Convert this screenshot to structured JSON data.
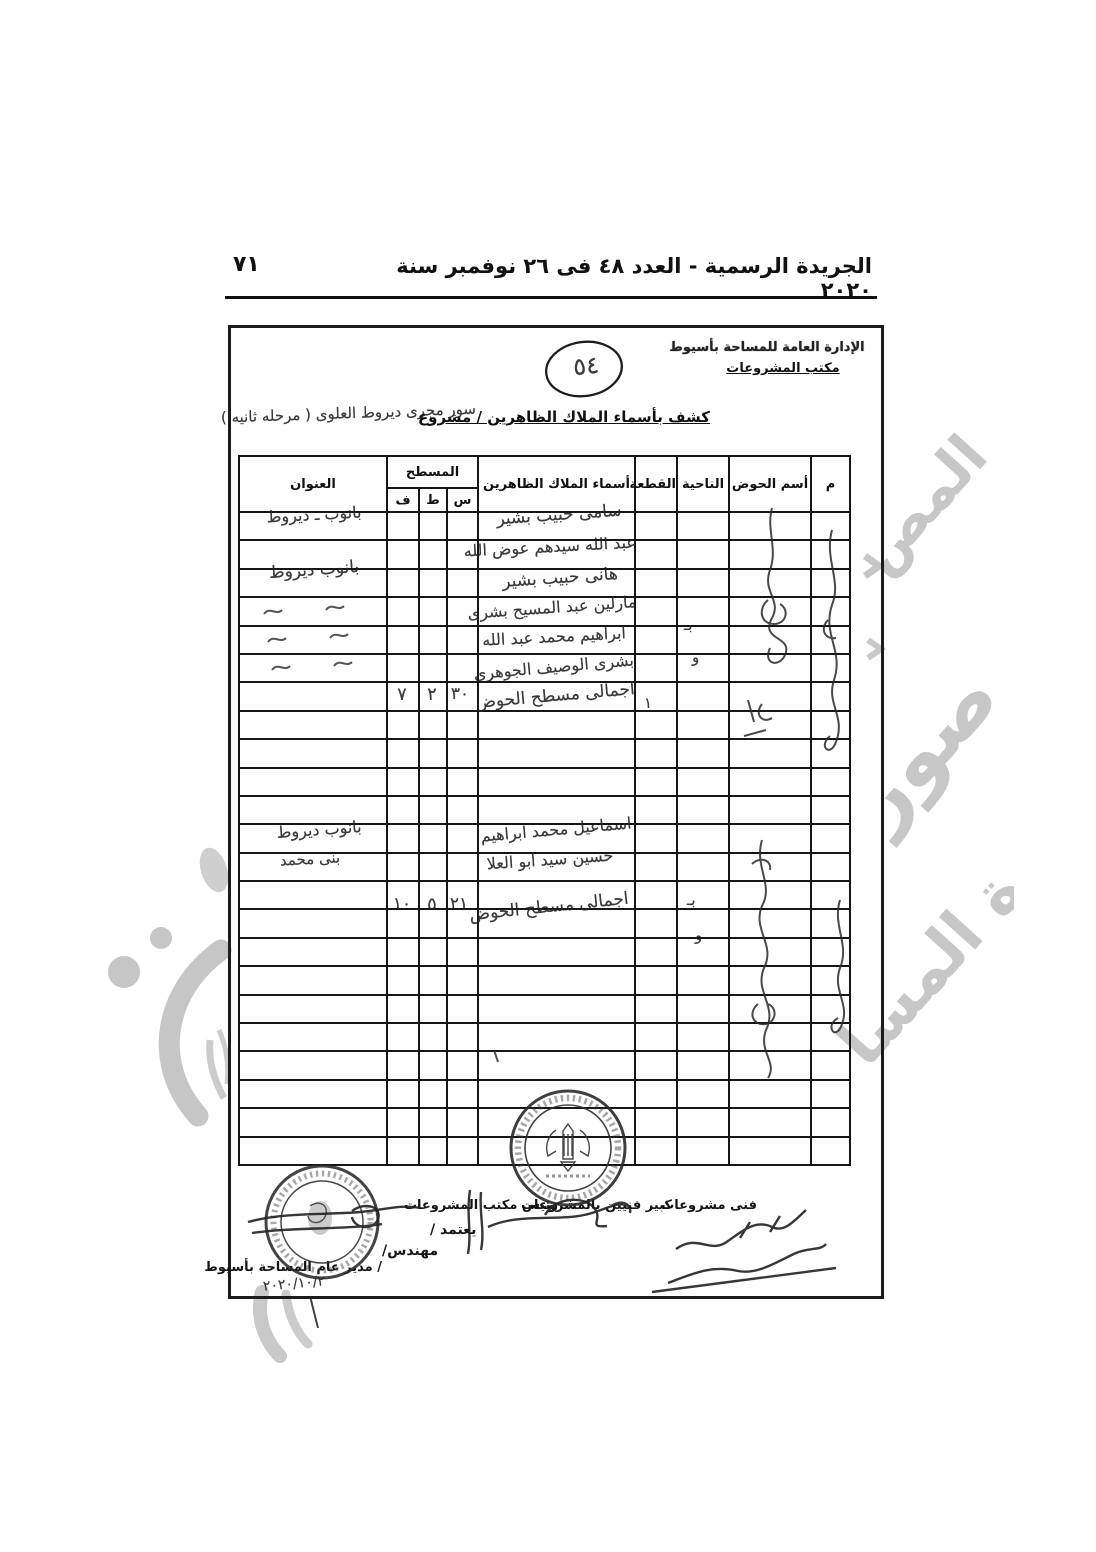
{
  "page": {
    "number": "٧١",
    "gazette_header": "الجريدة الرسمية - العدد ٤٨ فى ٢٦ نوفمبر سنة ٢٠٢٠"
  },
  "doc": {
    "dept_line1": "الإدارة العامة للمساحة بأسيوط",
    "dept_line2": "مكتب المشروعات",
    "serial_circled": "٥٤",
    "title_printed": "كشف بأسماء الملاك الظاهرين / مشروع",
    "title_handwritten": "سور مجرى ديروط العلوى ( مرحله ثانيه )"
  },
  "table": {
    "headers": {
      "index": "م",
      "basin": "أسم الحوض",
      "district": "الناحية",
      "parcel": "القطعة",
      "owners": "أسماء الملاك الظاهرين",
      "area": "المسطح",
      "area_s": "س",
      "area_k": "ط",
      "area_f": "ف",
      "address": "العنوان"
    },
    "hw": {
      "g1_owner1": "سامى حبيب بشير",
      "g1_owner2": "عبد الله سيدهم عوض الله",
      "g1_owner3": "هانى حبيب بشير",
      "g1_owner4": "مارلين عبد المسيح بشرى",
      "g1_owner5": "ابراهيم محمد عبد الله",
      "g1_owner6": "بشرى الوصيف الجوهرى",
      "g1_addr1": "بانوب ـ ديروط",
      "g1_addr2": "بانوب ديروط",
      "g1_total_label": "اجمالى مسطح الحوض",
      "g1_f": "٧",
      "g1_k": "٢",
      "g1_s": "٣٠",
      "g2_owner1": "اسماعيل محمد ابراهيم",
      "g2_owner2": "حسين سيد ابو العلا",
      "g2_addr1": "بانوب ديروط",
      "g2_addr2": "بنى محمد",
      "g2_total_label": "اجمالى مسطح الحوض",
      "g2_f": "١٠",
      "g2_k": "٥",
      "g2_s": "٢١",
      "district_mark1": "بـ",
      "district_mark2": "و",
      "district_mark3": "بـ",
      "district_mark4": "و",
      "parcel_mark": "١"
    }
  },
  "footer": {
    "role_right": "فنى مشروعات",
    "role_mid": "كبير فنيين بالمشروعات",
    "role_left": "رئيس مكتب المشروعات",
    "approve": "يعتمد /",
    "engineer": "مهندس/",
    "director": "/ مدير عام المساحة بأسيوط",
    "date_hw": "٢٠٢٠/١٠/٢"
  },
  "watermark": {
    "fragment1": "المص",
    "fragment2": "صور",
    "fragment3": "ة المسا",
    "color": "#c2c2c2"
  }
}
